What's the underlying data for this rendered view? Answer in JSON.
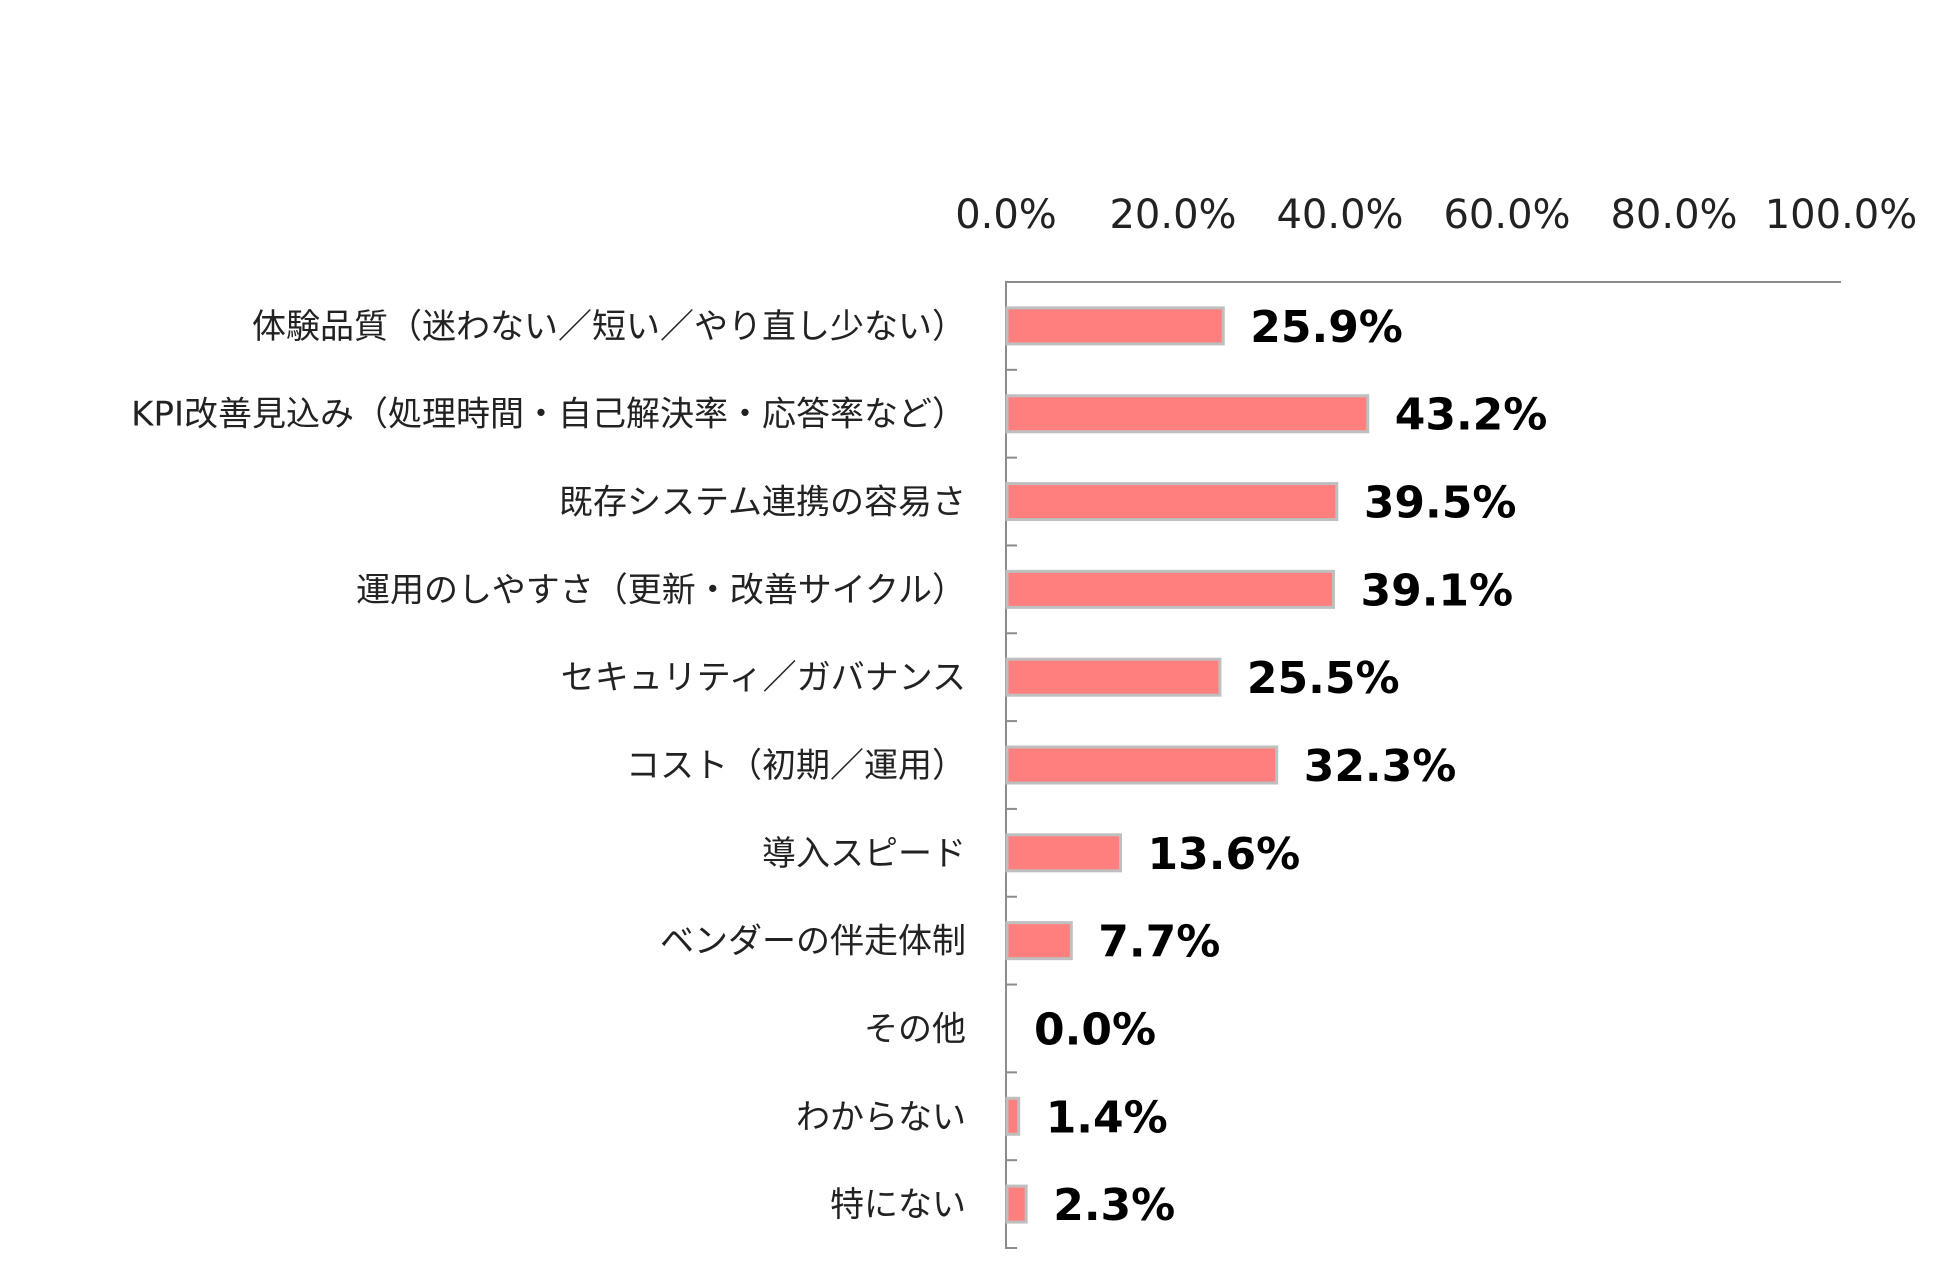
{
  "chart_data": {
    "type": "bar",
    "orientation": "horizontal",
    "categories": [
      "体験品質（迷わない／短い／やり直し少ない）",
      "KPI改善見込み（処理時間・自己解決率・応答率など）",
      "既存システム連携の容易さ",
      "運用のしやすさ（更新・改善サイクル）",
      "セキュリティ／ガバナンス",
      "コスト（初期／運用）",
      "導入スピード",
      "ベンダーの伴走体制",
      "その他",
      "わからない",
      "特にない"
    ],
    "values": [
      25.9,
      43.2,
      39.5,
      39.1,
      25.5,
      32.3,
      13.6,
      7.7,
      0.0,
      1.4,
      2.3
    ],
    "value_labels": [
      "25.9%",
      "43.2%",
      "39.5%",
      "39.1%",
      "25.5%",
      "32.3%",
      "13.6%",
      "7.7%",
      "0.0%",
      "1.4%",
      "2.3%"
    ],
    "xaxis_ticks": [
      "0.0%",
      "20.0%",
      "40.0%",
      "60.0%",
      "80.0%",
      "100.0%"
    ],
    "xlim": [
      0,
      100
    ],
    "xaxis_position": "top",
    "grid": false,
    "legend": "none",
    "bar_color": "#FF7F7F",
    "bar_border_color": "#BFBFBF"
  }
}
